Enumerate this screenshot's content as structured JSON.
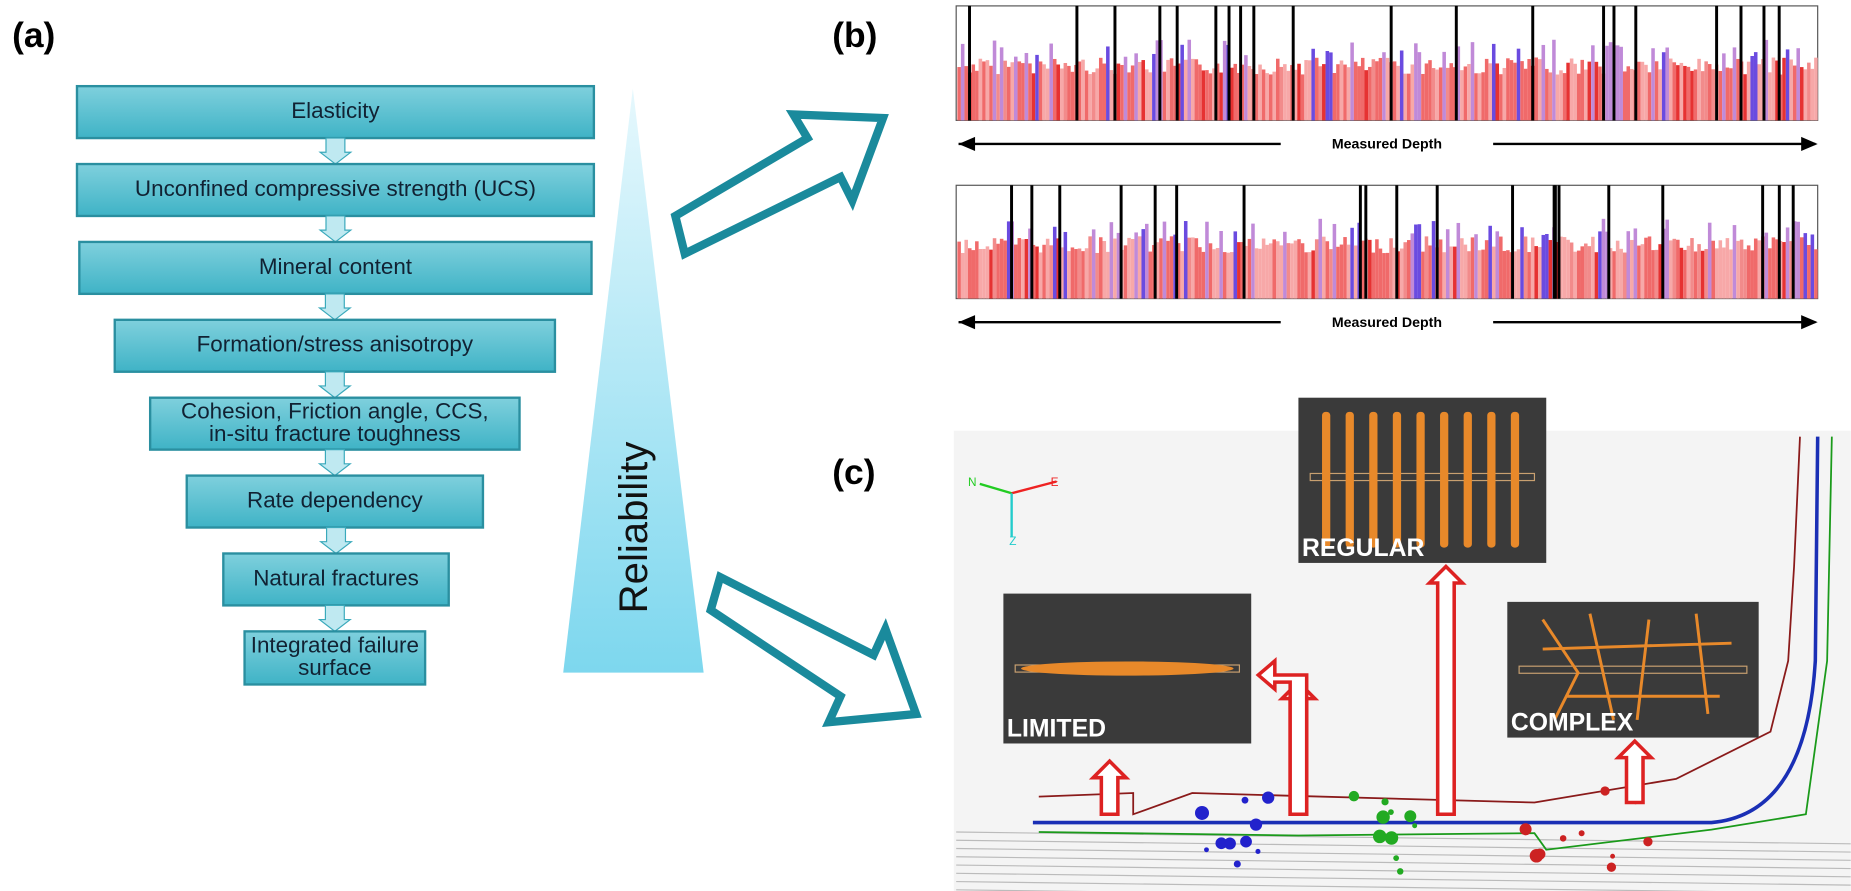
{
  "panel_a": {
    "label": "(a)",
    "steps": [
      [
        "Elasticity"
      ],
      [
        "Unconfined compressive strength (UCS)"
      ],
      [
        "Mineral content"
      ],
      [
        "Formation/stress anisotropy"
      ],
      [
        "Cohesion, Friction angle, CCS,",
        "in-situ fracture toughness"
      ],
      [
        "Rate dependency"
      ],
      [
        "Natural fractures"
      ],
      [
        "Integrated failure",
        "surface"
      ]
    ],
    "triangle_label": "Reliability"
  },
  "panel_b": {
    "label": "(b)",
    "tracks": [
      {
        "axis_label": "Measured Depth"
      },
      {
        "axis_label": "Measured Depth"
      }
    ]
  },
  "panel_c": {
    "label": "(c)",
    "compass": [
      "N",
      "E",
      "Z"
    ],
    "insets": [
      "REGULAR",
      "LIMITED",
      "COMPLEX"
    ]
  }
}
